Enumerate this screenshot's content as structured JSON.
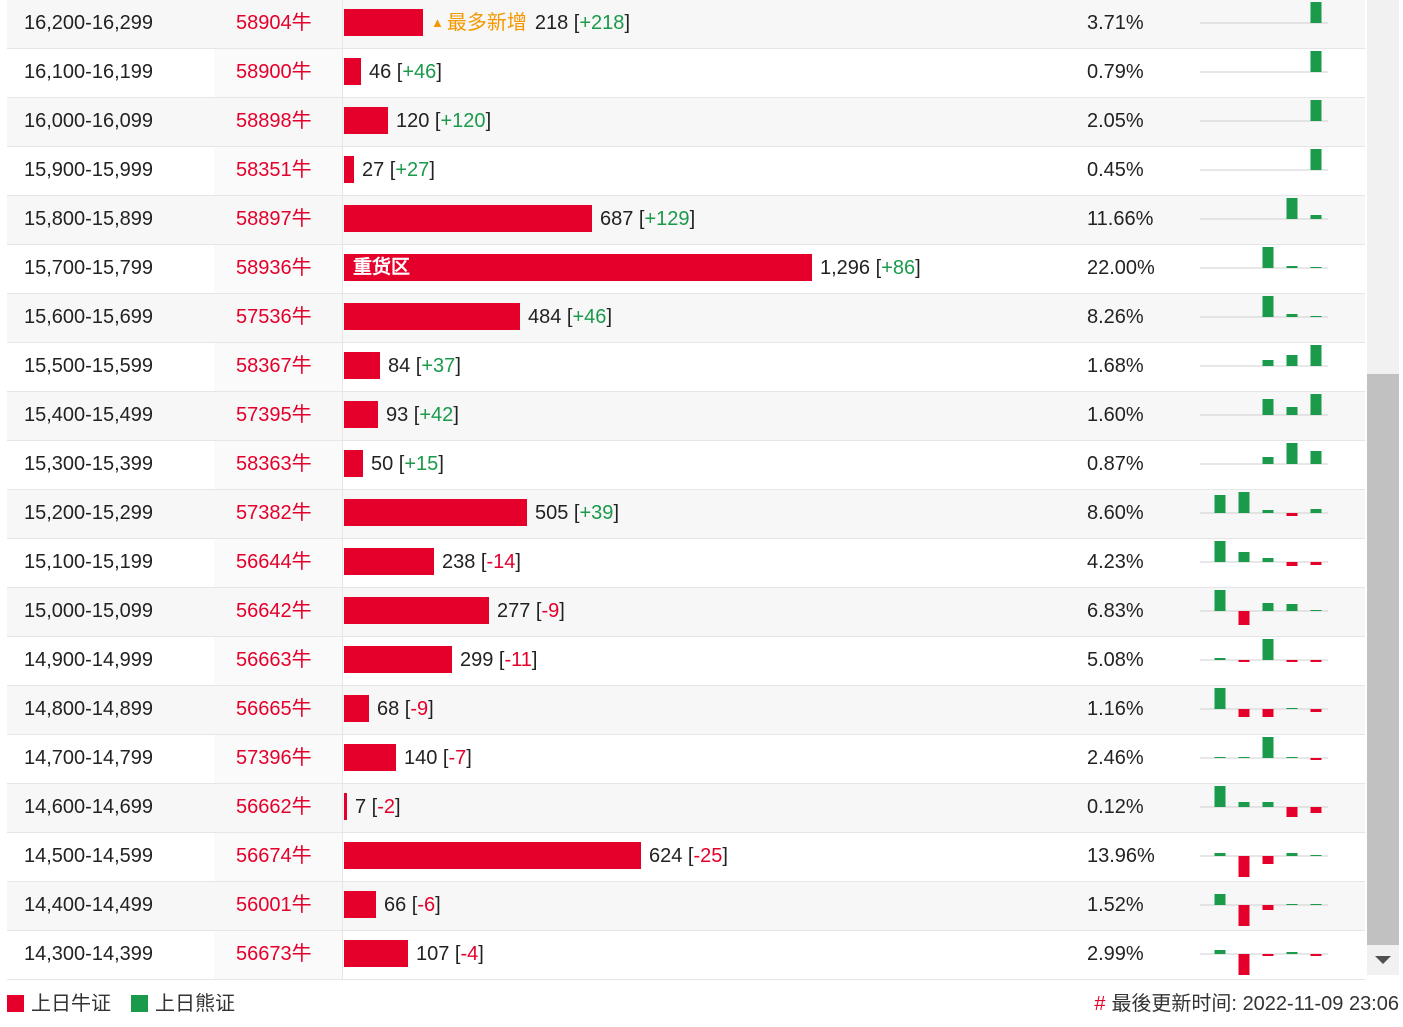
{
  "colors": {
    "bull": "#e4002b",
    "bear": "#1a9a4a",
    "badge": "#f39800"
  },
  "rows": [
    {
      "range": "16,200-16,299",
      "code": "58904牛",
      "bar_share": 0.0371,
      "badge": "最多新增",
      "badge_icon": "up-triangle-icon",
      "volume": "218",
      "change": "+218",
      "pct": "3.71%",
      "trend": [
        0,
        0,
        0,
        0,
        21
      ]
    },
    {
      "range": "16,100-16,199",
      "code": "58900牛",
      "bar_share": 0.0079,
      "volume": "46",
      "change": "+46",
      "pct": "0.79%",
      "trend": [
        0,
        0,
        0,
        0,
        21
      ]
    },
    {
      "range": "16,000-16,099",
      "code": "58898牛",
      "bar_share": 0.0205,
      "volume": "120",
      "change": "+120",
      "pct": "2.05%",
      "trend": [
        0,
        0,
        0,
        0,
        21
      ]
    },
    {
      "range": "15,900-15,999",
      "code": "58351牛",
      "bar_share": 0.0045,
      "volume": "27",
      "change": "+27",
      "pct": "0.45%",
      "trend": [
        0,
        0,
        0,
        0,
        21
      ]
    },
    {
      "range": "15,800-15,899",
      "code": "58897牛",
      "bar_share": 0.1166,
      "volume": "687",
      "change": "+129",
      "pct": "11.66%",
      "trend": [
        0,
        0,
        0,
        21,
        4
      ]
    },
    {
      "range": "15,700-15,799",
      "code": "58936牛",
      "bar_share": 0.22,
      "bar_label": "重货区",
      "volume": "1,296",
      "change": "+86",
      "pct": "22.00%",
      "trend": [
        0,
        0,
        21,
        2,
        1
      ]
    },
    {
      "range": "15,600-15,699",
      "code": "57536牛",
      "bar_share": 0.0826,
      "volume": "484",
      "change": "+46",
      "pct": "8.26%",
      "trend": [
        0,
        0,
        21,
        3,
        1
      ]
    },
    {
      "range": "15,500-15,599",
      "code": "58367牛",
      "bar_share": 0.0168,
      "volume": "84",
      "change": "+37",
      "pct": "1.68%",
      "trend": [
        0,
        0,
        6,
        11,
        21
      ]
    },
    {
      "range": "15,400-15,499",
      "code": "57395牛",
      "bar_share": 0.016,
      "volume": "93",
      "change": "+42",
      "pct": "1.60%",
      "trend": [
        0,
        0,
        16,
        8,
        21
      ]
    },
    {
      "range": "15,300-15,399",
      "code": "58363牛",
      "bar_share": 0.0087,
      "volume": "50",
      "change": "+15",
      "pct": "0.87%",
      "trend": [
        0,
        0,
        7,
        21,
        13
      ]
    },
    {
      "range": "15,200-15,299",
      "code": "57382牛",
      "bar_share": 0.086,
      "volume": "505",
      "change": "+39",
      "pct": "8.60%",
      "trend": [
        18,
        21,
        3,
        -3,
        4
      ]
    },
    {
      "range": "15,100-15,199",
      "code": "56644牛",
      "bar_share": 0.0423,
      "volume": "238",
      "change": "-14",
      "pct": "4.23%",
      "trend": [
        21,
        10,
        4,
        -4,
        -3
      ]
    },
    {
      "range": "15,000-15,099",
      "code": "56642牛",
      "bar_share": 0.0683,
      "volume": "277",
      "change": "-9",
      "pct": "6.83%",
      "trend": [
        21,
        -14,
        8,
        7,
        1
      ]
    },
    {
      "range": "14,900-14,999",
      "code": "56663牛",
      "bar_share": 0.0508,
      "volume": "299",
      "change": "-11",
      "pct": "5.08%",
      "trend": [
        2,
        -2,
        21,
        -2,
        -2
      ]
    },
    {
      "range": "14,800-14,899",
      "code": "56665牛",
      "bar_share": 0.0116,
      "volume": "68",
      "change": "-9",
      "pct": "1.16%",
      "trend": [
        21,
        -8,
        -8,
        1,
        -3
      ]
    },
    {
      "range": "14,700-14,799",
      "code": "57396牛",
      "bar_share": 0.0246,
      "volume": "140",
      "change": "-7",
      "pct": "2.46%",
      "trend": [
        1,
        1,
        21,
        1,
        -2
      ]
    },
    {
      "range": "14,600-14,699",
      "code": "56662牛",
      "bar_share": 0.0012,
      "volume": "7",
      "change": "-2",
      "pct": "0.12%",
      "trend": [
        21,
        5,
        5,
        -10,
        -6
      ]
    },
    {
      "range": "14,500-14,599",
      "code": "56674牛",
      "bar_share": 0.1396,
      "volume": "624",
      "change": "-25",
      "pct": "13.96%",
      "trend": [
        3,
        -21,
        -8,
        3,
        1
      ]
    },
    {
      "range": "14,400-14,499",
      "code": "56001牛",
      "bar_share": 0.0152,
      "volume": "66",
      "change": "-6",
      "pct": "1.52%",
      "trend": [
        11,
        -21,
        -5,
        1,
        1
      ]
    },
    {
      "range": "14,300-14,399",
      "code": "56673牛",
      "bar_share": 0.0299,
      "volume": "107",
      "change": "-4",
      "pct": "2.99%",
      "trend": [
        4,
        -21,
        -2,
        2,
        -2
      ]
    }
  ],
  "legend": {
    "bull_label": "上日牛证",
    "bear_label": "上日熊证"
  },
  "footer": {
    "hash": "#",
    "updated_label": "最後更新时间:",
    "updated_value": "2022-11-09 23:06"
  }
}
